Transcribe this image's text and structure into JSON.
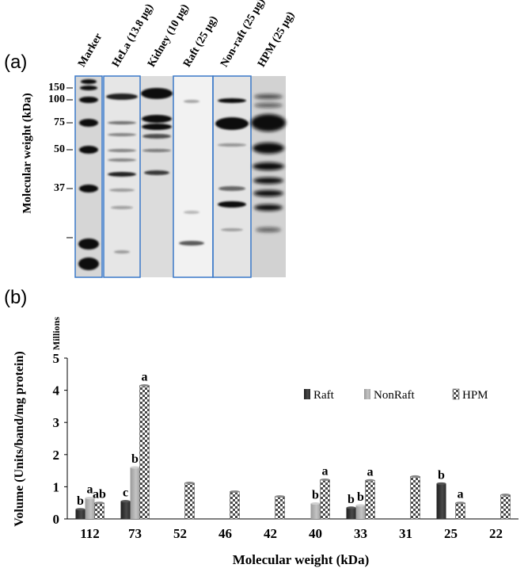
{
  "panel_a": {
    "label": "(a)",
    "ylabel": "Molecular weight (kDa)",
    "lanes": [
      "Marker",
      "HeLa (13.8 µg)",
      "Kidney (10 µg)",
      "Raft (25 µg)",
      "Non-raft (25 µg)",
      "HPM (25 µg)"
    ],
    "mw_markers": [
      "150",
      "100",
      "75",
      "50",
      "37"
    ]
  },
  "panel_b": {
    "label": "(b)"
  },
  "chart_data": {
    "type": "bar",
    "title": "",
    "xlabel": "Molecular weight (kDa)",
    "ylabel": "Volume (Units/band/mg protein)",
    "y_unit_label": "Millions",
    "ylim": [
      0,
      5
    ],
    "yticks": [
      "0",
      "1",
      "2",
      "3",
      "4",
      "5"
    ],
    "grid": false,
    "legend_position": "right",
    "categories": [
      "112",
      "73",
      "52",
      "46",
      "42",
      "40",
      "33",
      "31",
      "25",
      "22"
    ],
    "series": [
      {
        "name": "Raft",
        "color": "#3a3a3a",
        "pattern": "solid",
        "values": [
          0.3,
          0.55,
          null,
          null,
          null,
          null,
          0.35,
          null,
          1.1,
          null
        ]
      },
      {
        "name": "NonRaft",
        "color": "#aaaaaa",
        "pattern": "solid",
        "values": [
          0.65,
          1.6,
          null,
          null,
          null,
          0.48,
          0.42,
          null,
          null,
          null
        ]
      },
      {
        "name": "HPM",
        "color": "#555555",
        "pattern": "checker",
        "values": [
          0.5,
          4.15,
          1.12,
          0.85,
          0.7,
          1.22,
          1.2,
          1.32,
          0.5,
          0.75
        ]
      }
    ],
    "significance_letters": [
      [
        "b",
        "a",
        "ab"
      ],
      [
        "c",
        "b",
        "a"
      ],
      [
        null,
        null,
        null
      ],
      [
        null,
        null,
        null
      ],
      [
        null,
        null,
        null
      ],
      [
        null,
        "b",
        "a"
      ],
      [
        "b",
        "b",
        "a"
      ],
      [
        null,
        null,
        null
      ],
      [
        "b",
        null,
        "a"
      ],
      [
        null,
        null,
        null
      ]
    ]
  }
}
